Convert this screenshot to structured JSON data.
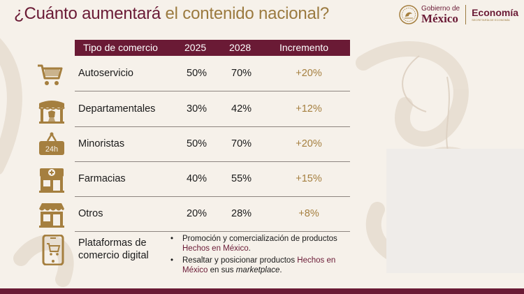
{
  "title": {
    "part1": "¿Cuánto aumentará ",
    "part2": "el contenido nacional?"
  },
  "logos": {
    "gob_line1": "Gobierno de",
    "gob_line2": "México",
    "economia": "Economía",
    "economia_sub": "SECRETARÍA DE ECONOMÍA"
  },
  "colors": {
    "primary": "#6a1a35",
    "gold": "#a57f3f",
    "background": "#f6f1ea"
  },
  "table": {
    "headers": [
      "Tipo de comercio",
      "2025",
      "2028",
      "Incremento"
    ],
    "rows": [
      {
        "icon": "shopping-cart-icon",
        "name": "Autoservicio",
        "v2025": "50%",
        "v2028": "70%",
        "increment": "+20%"
      },
      {
        "icon": "department-store-icon",
        "name": "Departamentales",
        "v2025": "30%",
        "v2028": "42%",
        "increment": "+12%"
      },
      {
        "icon": "24h-sign-icon",
        "name": "Minoristas",
        "v2025": "50%",
        "v2028": "70%",
        "increment": "+20%"
      },
      {
        "icon": "pharmacy-icon",
        "name": "Farmacias",
        "v2025": "40%",
        "v2028": "55%",
        "increment": "+15%"
      },
      {
        "icon": "storefront-icon",
        "name": "Otros",
        "v2025": "20%",
        "v2028": "28%",
        "increment": "+8%"
      }
    ]
  },
  "platforms": {
    "icon": "smartphone-cart-icon",
    "title_line1": "Plataformas de",
    "title_line2": "comercio digital",
    "bullet1": {
      "text": "Promoción y comercialización de productos ",
      "highlight": "Hechos en México",
      "end": "."
    },
    "bullet2": {
      "text": "Resaltar y posicionar productos ",
      "highlight": "Hechos en México",
      "mid": " en sus ",
      "italic": "marketplace",
      "end": "."
    }
  }
}
